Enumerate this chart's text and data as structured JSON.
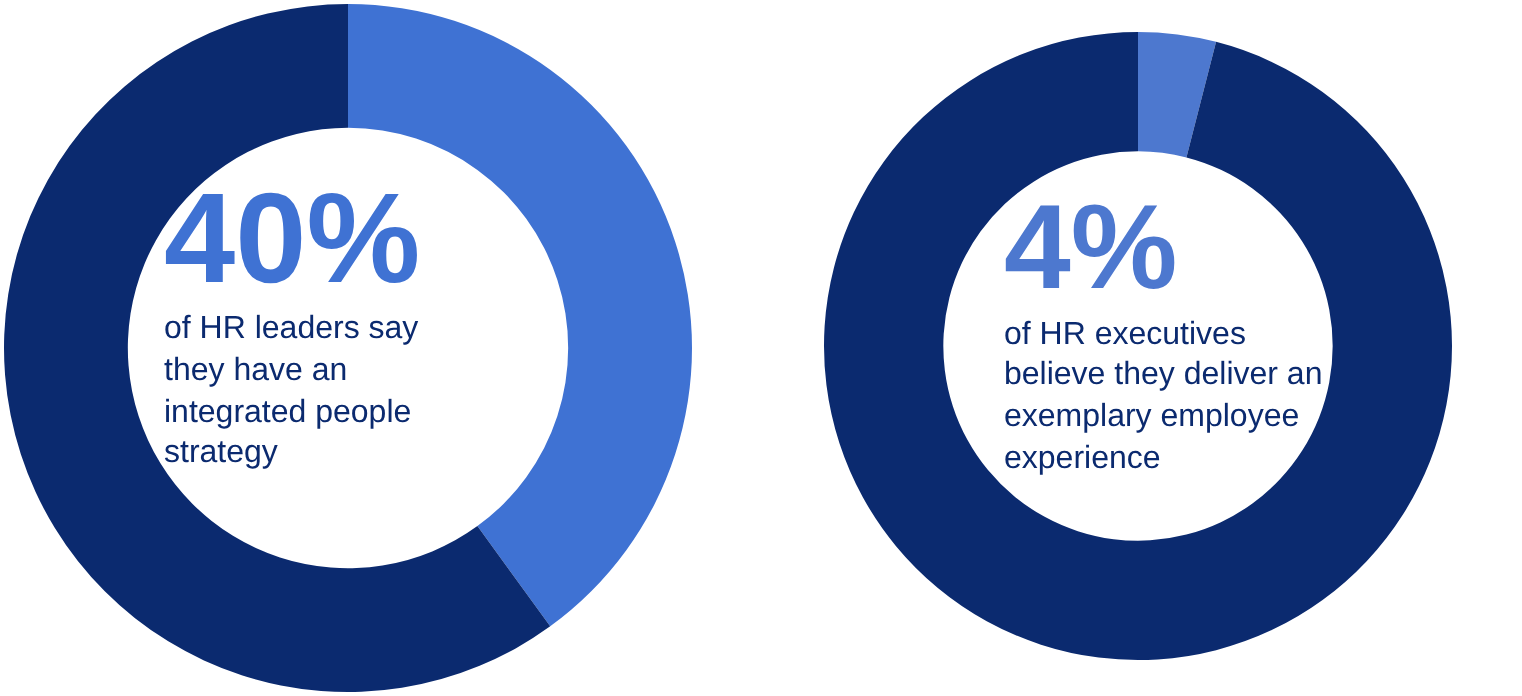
{
  "chart_data": [
    {
      "type": "donut",
      "title": "40%",
      "subtitle": "of HR leaders say they have an integrated people strategy",
      "categories": [
        null,
        null
      ],
      "values": [
        40,
        60
      ],
      "colors": [
        "#3f72d3",
        "#0b2a6f"
      ],
      "legend": false
    },
    {
      "type": "donut",
      "title": "4%",
      "subtitle": "of HR executives believe they deliver an exemplary employee experience",
      "categories": [
        null,
        null
      ],
      "values": [
        4,
        96
      ],
      "colors": [
        "#4d78cf",
        "#0b2a6f"
      ],
      "legend": false
    }
  ]
}
